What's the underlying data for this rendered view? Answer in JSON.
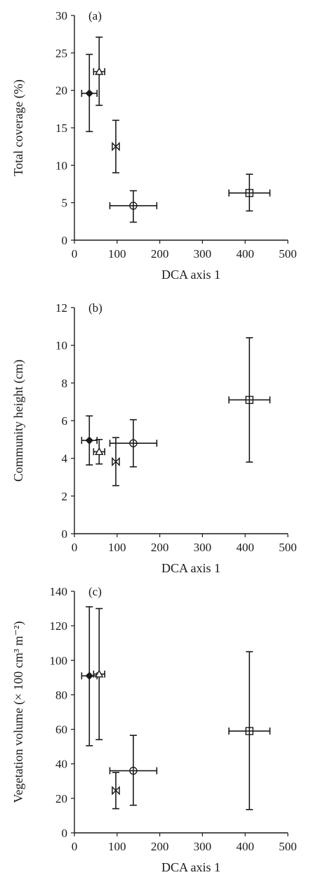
{
  "chart_data": [
    {
      "type": "scatter",
      "panel_label": "(a)",
      "xlabel": "DCA axis 1",
      "ylabel": "Total coverage (%)",
      "xlim": [
        0,
        500
      ],
      "ylim": [
        0,
        30
      ],
      "x_ticks": [
        0,
        100,
        200,
        300,
        400,
        500
      ],
      "y_ticks": [
        0,
        5,
        10,
        15,
        20,
        25,
        30
      ],
      "grid": false,
      "points": [
        {
          "marker": "diamond-filled",
          "x": 35,
          "x_err": 18,
          "y": 19.6,
          "y_low": 14.5,
          "y_high": 24.8
        },
        {
          "marker": "triangle-open",
          "x": 58,
          "x_err": 13,
          "y": 22.5,
          "y_low": 18.0,
          "y_high": 27.1
        },
        {
          "marker": "bowtie-open",
          "x": 97,
          "x_err": 8,
          "y": 12.5,
          "y_low": 9.0,
          "y_high": 16.0
        },
        {
          "marker": "circle-open",
          "x": 138,
          "x_err": 55,
          "y": 4.6,
          "y_low": 2.4,
          "y_high": 6.6
        },
        {
          "marker": "square-open",
          "x": 410,
          "x_err": 48,
          "y": 6.3,
          "y_low": 3.9,
          "y_high": 8.8
        }
      ]
    },
    {
      "type": "scatter",
      "panel_label": "(b)",
      "xlabel": "DCA axis 1",
      "ylabel": "Community height (cm)",
      "xlim": [
        0,
        500
      ],
      "ylim": [
        0,
        12
      ],
      "x_ticks": [
        0,
        100,
        200,
        300,
        400,
        500
      ],
      "y_ticks": [
        0,
        2,
        4,
        6,
        8,
        10,
        12
      ],
      "grid": false,
      "points": [
        {
          "marker": "diamond-filled",
          "x": 35,
          "x_err": 18,
          "y": 4.95,
          "y_low": 3.65,
          "y_high": 6.25
        },
        {
          "marker": "triangle-open",
          "x": 58,
          "x_err": 13,
          "y": 4.35,
          "y_low": 3.7,
          "y_high": 5.0
        },
        {
          "marker": "bowtie-open",
          "x": 97,
          "x_err": 8,
          "y": 3.82,
          "y_low": 2.55,
          "y_high": 5.1
        },
        {
          "marker": "circle-open",
          "x": 138,
          "x_err": 55,
          "y": 4.8,
          "y_low": 3.55,
          "y_high": 6.05
        },
        {
          "marker": "square-open",
          "x": 410,
          "x_err": 48,
          "y": 7.1,
          "y_low": 3.8,
          "y_high": 10.4
        }
      ]
    },
    {
      "type": "scatter",
      "panel_label": "(c)",
      "xlabel": "DCA axis 1",
      "ylabel": "Vegetation volume (× 100 cm³ m⁻²)",
      "xlim": [
        0,
        500
      ],
      "ylim": [
        0,
        140
      ],
      "x_ticks": [
        0,
        100,
        200,
        300,
        400,
        500
      ],
      "y_ticks": [
        0,
        20,
        40,
        60,
        80,
        100,
        120,
        140
      ],
      "grid": false,
      "points": [
        {
          "marker": "diamond-filled",
          "x": 35,
          "x_err": 18,
          "y": 91,
          "y_low": 50.5,
          "y_high": 131
        },
        {
          "marker": "triangle-open",
          "x": 58,
          "x_err": 13,
          "y": 92,
          "y_low": 54,
          "y_high": 130
        },
        {
          "marker": "bowtie-open",
          "x": 97,
          "x_err": 8,
          "y": 24.5,
          "y_low": 14,
          "y_high": 35
        },
        {
          "marker": "circle-open",
          "x": 138,
          "x_err": 55,
          "y": 36,
          "y_low": 16,
          "y_high": 56.5
        },
        {
          "marker": "square-open",
          "x": 410,
          "x_err": 48,
          "y": 59,
          "y_low": 13.5,
          "y_high": 105
        }
      ]
    }
  ]
}
